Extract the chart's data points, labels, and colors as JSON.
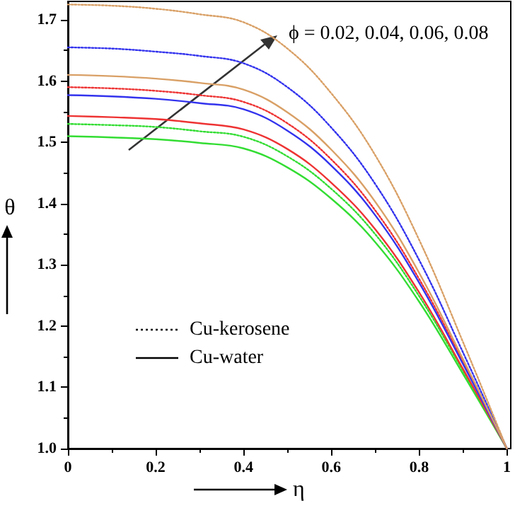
{
  "chart_data": {
    "type": "line",
    "xlabel": "η",
    "ylabel": "θ",
    "x": [
      0,
      0.1,
      0.2,
      0.3,
      0.4,
      0.5,
      0.6,
      0.7,
      0.8,
      0.9,
      1
    ],
    "series": [
      {
        "color": "#33dd33",
        "line_style": "dotted",
        "values": [
          1.53,
          1.528,
          1.525,
          1.518,
          1.509,
          1.477,
          1.424,
          1.35,
          1.249,
          1.127,
          1.0
        ]
      },
      {
        "color": "#ee3333",
        "line_style": "dotted",
        "values": [
          1.59,
          1.588,
          1.584,
          1.577,
          1.566,
          1.531,
          1.472,
          1.389,
          1.277,
          1.142,
          1.0
        ]
      },
      {
        "color": "#3333ee",
        "line_style": "dotted",
        "values": [
          1.655,
          1.653,
          1.648,
          1.641,
          1.629,
          1.59,
          1.524,
          1.432,
          1.308,
          1.157,
          1.0
        ]
      },
      {
        "color": "#d9a066",
        "line_style": "dotted",
        "values": [
          1.725,
          1.723,
          1.718,
          1.709,
          1.696,
          1.653,
          1.58,
          1.479,
          1.341,
          1.174,
          1.0
        ]
      },
      {
        "color": "#33dd33",
        "line_style": "solid",
        "values": [
          1.51,
          1.508,
          1.505,
          1.499,
          1.49,
          1.459,
          1.408,
          1.337,
          1.24,
          1.122,
          1.0
        ]
      },
      {
        "color": "#ee3333",
        "line_style": "solid",
        "values": [
          1.543,
          1.541,
          1.538,
          1.531,
          1.521,
          1.489,
          1.434,
          1.358,
          1.255,
          1.13,
          1.0
        ]
      },
      {
        "color": "#3333ee",
        "line_style": "solid",
        "values": [
          1.577,
          1.575,
          1.571,
          1.564,
          1.554,
          1.519,
          1.462,
          1.381,
          1.271,
          1.138,
          1.0
        ]
      },
      {
        "color": "#d9a066",
        "line_style": "solid",
        "values": [
          1.61,
          1.608,
          1.604,
          1.597,
          1.586,
          1.549,
          1.488,
          1.403,
          1.287,
          1.146,
          1.0
        ]
      }
    ],
    "annotations": [
      "ϕ = 0.02, 0.04, 0.06, 0.08",
      "Cu-kerosene",
      "Cu-water"
    ],
    "xlim": [
      0,
      1
    ],
    "ylim": [
      1,
      1.73
    ],
    "xticks": [
      0,
      0.2,
      0.4,
      0.6,
      0.8,
      1
    ],
    "yticks": [
      {
        "value": 1,
        "label": "1.0"
      },
      {
        "value": 1.1,
        "label": "1.1"
      },
      {
        "value": 1.2,
        "label": "1.2"
      },
      {
        "value": 1.3,
        "label": "1.3"
      },
      {
        "value": 1.4,
        "label": "1.4"
      },
      {
        "value": 1.5,
        "label": "1.5"
      },
      {
        "value": 1.6,
        "label": "1.6"
      },
      {
        "value": 1.7,
        "label": "1.7"
      }
    ],
    "grid": false,
    "marker": "none"
  }
}
